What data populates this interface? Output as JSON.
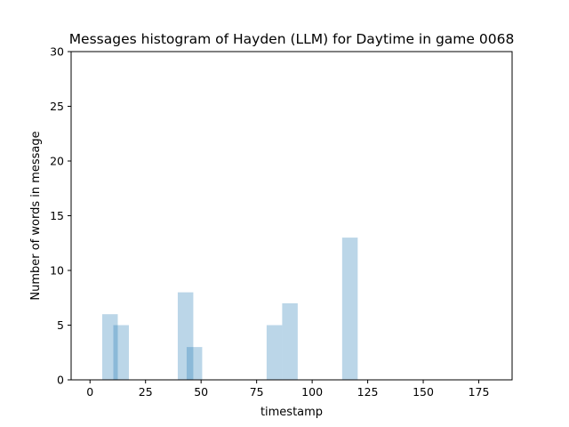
{
  "chart_data": {
    "type": "bar",
    "title": "Messages histogram of Hayden (LLM) for Daytime in game 0068",
    "xlabel": "timestamp",
    "ylabel": "Number of words in message",
    "xlim": [
      -8.5,
      190
    ],
    "ylim": [
      0,
      30
    ],
    "x_ticks": [
      0,
      25,
      50,
      75,
      100,
      125,
      150,
      175
    ],
    "y_ticks": [
      0,
      5,
      10,
      15,
      20,
      25,
      30
    ],
    "bar_color": "#1f77b4",
    "bar_alpha": 0.3,
    "grid": false,
    "bars": [
      {
        "x_start": 5.5,
        "x_end": 12.5,
        "value": 6
      },
      {
        "x_start": 10.5,
        "x_end": 17.5,
        "value": 5
      },
      {
        "x_start": 39.5,
        "x_end": 46.5,
        "value": 8
      },
      {
        "x_start": 43.5,
        "x_end": 50.5,
        "value": 3
      },
      {
        "x_start": 79.5,
        "x_end": 86.5,
        "value": 5
      },
      {
        "x_start": 86.5,
        "x_end": 93.5,
        "value": 7
      },
      {
        "x_start": 113.5,
        "x_end": 120.5,
        "value": 13
      }
    ]
  }
}
